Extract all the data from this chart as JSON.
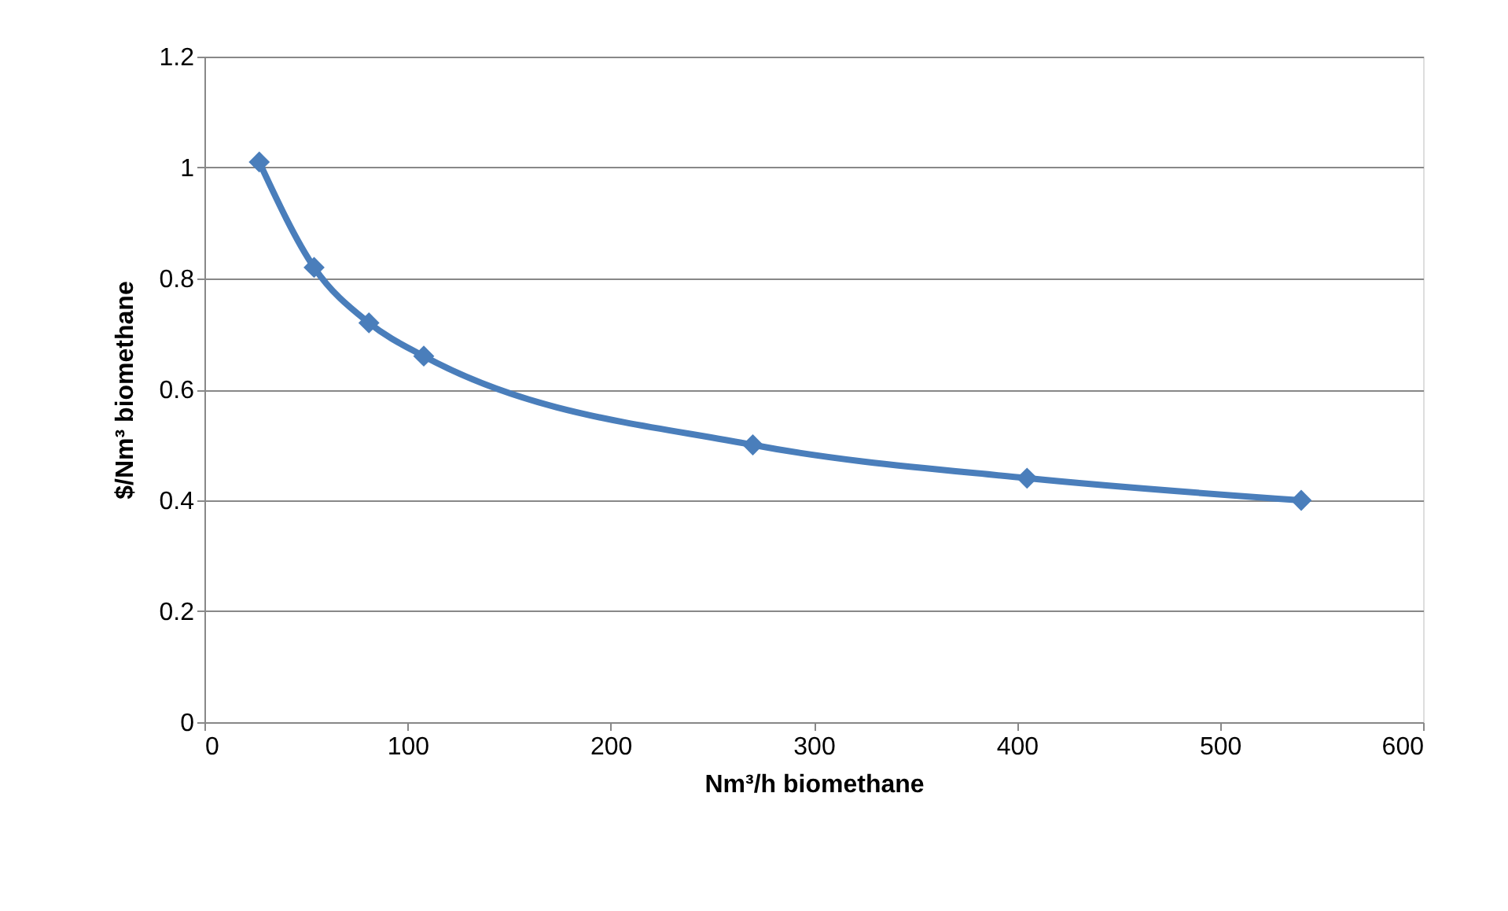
{
  "chart_data": {
    "type": "line",
    "xlabel": "Nm³/h biomethane",
    "ylabel": "$/Nm³ biomethane",
    "x": [
      27,
      54,
      81,
      108,
      270,
      405,
      540
    ],
    "series": [
      {
        "color": "#4a7ebb",
        "values": [
          1.01,
          0.82,
          0.72,
          0.66,
          0.5,
          0.44,
          0.4
        ]
      }
    ],
    "xlim": [
      0,
      600
    ],
    "xticks": [
      0,
      100,
      200,
      300,
      400,
      500,
      600
    ],
    "ylim": [
      0,
      1.2
    ],
    "yticks": [
      0,
      0.2,
      0.4,
      0.6,
      0.8,
      1,
      1.2
    ],
    "grid": "y",
    "marker": "diamond",
    "line_style": "solid"
  }
}
